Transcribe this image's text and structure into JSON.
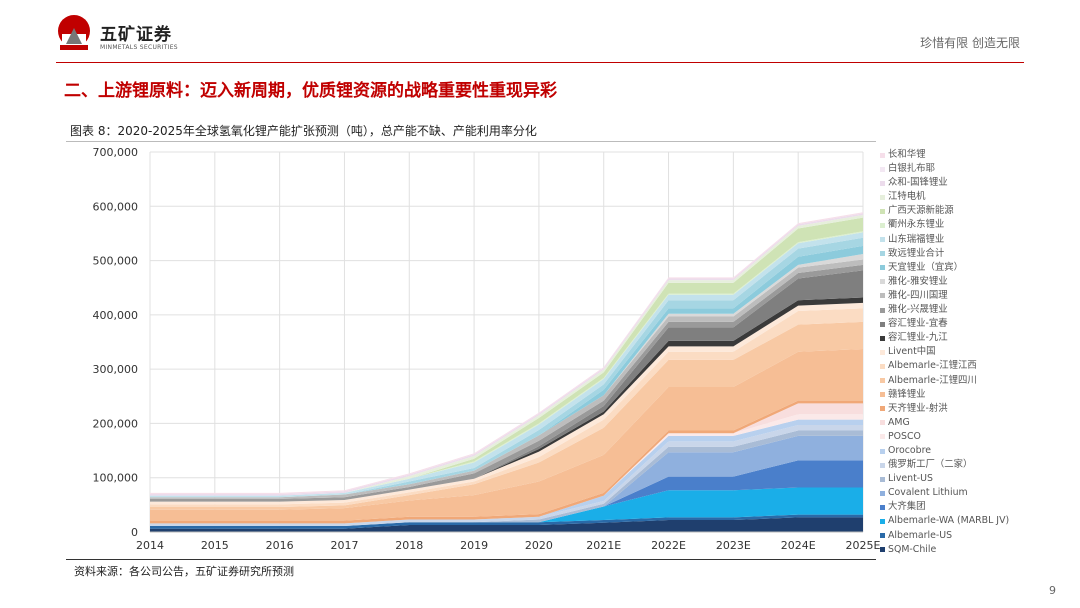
{
  "header": {
    "brand": "五矿证券",
    "brand_en": "MINMETALS SECURITIES",
    "slogan": "珍惜有限  创造无限"
  },
  "title": "二、上游锂原料：迈入新周期，优质锂资源的战略重要性重现异彩",
  "caption": "图表 8：2020-2025年全球氢氧化锂产能扩张预测（吨），总产能不缺、产能利用率分化",
  "source": "资料来源：各公司公告，五矿证券研究所预测",
  "page_number": "9",
  "chart_data": {
    "type": "area",
    "stacked": true,
    "title": "",
    "xlabel": "",
    "ylabel": "",
    "ylim": [
      0,
      700000
    ],
    "yticks": [
      "0",
      "100,000",
      "200,000",
      "300,000",
      "400,000",
      "500,000",
      "600,000",
      "700,000"
    ],
    "grid": true,
    "legend_placement": "right",
    "categories": [
      "2014",
      "2015",
      "2016",
      "2017",
      "2018",
      "2019",
      "2020",
      "2021E",
      "2022E",
      "2023E",
      "2024E",
      "2025E"
    ],
    "series": [
      {
        "name": "SQM-Chile",
        "color": "#1f3f6e",
        "values": [
          6000,
          6000,
          6000,
          6000,
          13000,
          13000,
          13000,
          17000,
          22000,
          22000,
          27000,
          27000
        ]
      },
      {
        "name": "Albemarle-US",
        "color": "#2a6aa8",
        "values": [
          5000,
          5000,
          5000,
          5000,
          5000,
          5000,
          5000,
          5000,
          5000,
          5000,
          5000,
          5000
        ]
      },
      {
        "name": "Albemarle-WA (MARBL JV)",
        "color": "#1aaee8",
        "values": [
          0,
          0,
          0,
          0,
          0,
          0,
          0,
          25000,
          50000,
          50000,
          50000,
          50000
        ]
      },
      {
        "name": "大齐集团",
        "color": "#4a7fcb",
        "values": [
          0,
          0,
          0,
          0,
          0,
          0,
          0,
          0,
          25000,
          25000,
          50000,
          50000
        ]
      },
      {
        "name": "Covalent Lithium",
        "color": "#8fb0de",
        "values": [
          0,
          0,
          0,
          0,
          0,
          0,
          0,
          0,
          45000,
          45000,
          45000,
          45000
        ]
      },
      {
        "name": "Livent-US",
        "color": "#a9bcd6",
        "values": [
          0,
          0,
          0,
          0,
          0,
          0,
          5000,
          5000,
          10000,
          10000,
          10000,
          10000
        ]
      },
      {
        "name": "俄罗斯工厂（二家）",
        "color": "#c9d6ea",
        "values": [
          5000,
          5000,
          5000,
          5000,
          5000,
          5000,
          5000,
          5000,
          10000,
          10000,
          10000,
          10000
        ]
      },
      {
        "name": "Orocobre",
        "color": "#b8d0ee",
        "values": [
          0,
          0,
          0,
          0,
          0,
          0,
          0,
          10000,
          10000,
          10000,
          10000,
          10000
        ]
      },
      {
        "name": "POSCO",
        "color": "#fbe9e9",
        "values": [
          0,
          0,
          0,
          0,
          0,
          0,
          0,
          0,
          5000,
          5000,
          10000,
          10000
        ]
      },
      {
        "name": "AMG",
        "color": "#f8dede",
        "values": [
          0,
          0,
          0,
          0,
          0,
          0,
          0,
          0,
          0,
          0,
          20000,
          20000
        ]
      },
      {
        "name": "天齐锂业-射洪",
        "color": "#f0a878",
        "values": [
          5000,
          5000,
          5000,
          5000,
          5000,
          5000,
          5000,
          5000,
          5000,
          5000,
          5000,
          5000
        ]
      },
      {
        "name": "赣锋锂业",
        "color": "#f6be95",
        "values": [
          20000,
          20000,
          20000,
          23000,
          30000,
          40000,
          60000,
          70000,
          80000,
          80000,
          90000,
          95000
        ]
      },
      {
        "name": "Albemarle-江锂四川",
        "color": "#f8c9a4",
        "values": [
          5000,
          5000,
          5000,
          5000,
          10000,
          20000,
          35000,
          50000,
          50000,
          50000,
          50000,
          50000
        ]
      },
      {
        "name": "Albemarle-江锂江西",
        "color": "#fbdcc3",
        "values": [
          5000,
          5000,
          5000,
          5000,
          5000,
          5000,
          10000,
          15000,
          15000,
          15000,
          25000,
          25000
        ]
      },
      {
        "name": "Livent中国",
        "color": "#fde9da",
        "values": [
          5000,
          5000,
          5000,
          5000,
          5000,
          5000,
          10000,
          10000,
          10000,
          10000,
          10000,
          10000
        ]
      },
      {
        "name": "容汇锂业-九江",
        "color": "#3a3a3a",
        "values": [
          0,
          0,
          0,
          0,
          0,
          0,
          5000,
          5000,
          10000,
          10000,
          10000,
          10000
        ]
      },
      {
        "name": "容汇锂业-宜春",
        "color": "#7f7f7f",
        "values": [
          0,
          0,
          0,
          0,
          0,
          0,
          5000,
          10000,
          25000,
          25000,
          40000,
          50000
        ]
      },
      {
        "name": "雅化-兴晟锂业",
        "color": "#9a9a9a",
        "values": [
          5000,
          5000,
          5000,
          5000,
          5000,
          10000,
          10000,
          10000,
          10000,
          10000,
          10000,
          10000
        ]
      },
      {
        "name": "雅化-四川国理",
        "color": "#bdbdbd",
        "values": [
          3000,
          3000,
          3000,
          5000,
          5000,
          5000,
          10000,
          10000,
          10000,
          10000,
          10000,
          10000
        ]
      },
      {
        "name": "雅化-雅安锂业",
        "color": "#d9d9d9",
        "values": [
          0,
          0,
          0,
          0,
          0,
          0,
          0,
          0,
          5000,
          5000,
          5000,
          10000
        ]
      },
      {
        "name": "天宜锂业（宜宾）",
        "color": "#8ccbdc",
        "values": [
          0,
          0,
          0,
          0,
          0,
          0,
          0,
          10000,
          10000,
          10000,
          15000,
          15000
        ]
      },
      {
        "name": "致远锂业合计",
        "color": "#a6d6e3",
        "values": [
          0,
          0,
          0,
          0,
          5000,
          5000,
          10000,
          10000,
          15000,
          15000,
          15000,
          15000
        ]
      },
      {
        "name": "山东瑞福锂业",
        "color": "#c3e2ec",
        "values": [
          3000,
          3000,
          3000,
          3000,
          5000,
          10000,
          10000,
          10000,
          10000,
          10000,
          10000,
          10000
        ]
      },
      {
        "name": "衢州永东锂业",
        "color": "#dcefd0",
        "values": [
          0,
          0,
          0,
          0,
          0,
          2000,
          2000,
          2000,
          2000,
          2000,
          2000,
          2000
        ]
      },
      {
        "name": "广西天源新能源",
        "color": "#cfe3b5",
        "values": [
          0,
          0,
          0,
          0,
          0,
          5000,
          10000,
          10000,
          20000,
          20000,
          25000,
          25000
        ]
      },
      {
        "name": "江特电机",
        "color": "#e6efdc",
        "values": [
          0,
          0,
          0,
          0,
          5000,
          5000,
          5000,
          5000,
          5000,
          5000,
          5000,
          5000
        ]
      },
      {
        "name": "众和-国锋锂业",
        "color": "#ecdcec",
        "values": [
          3000,
          3000,
          3000,
          3000,
          3000,
          3000,
          3000,
          3000,
          3000,
          3000,
          3000,
          3000
        ]
      },
      {
        "name": "白银扎布耶",
        "color": "#f3e8f3",
        "values": [
          0,
          0,
          0,
          0,
          0,
          0,
          0,
          0,
          0,
          0,
          0,
          0
        ]
      },
      {
        "name": "长和华锂",
        "color": "#f6dfea",
        "values": [
          2000,
          2000,
          2000,
          2000,
          2000,
          2000,
          2000,
          2000,
          2000,
          2000,
          2000,
          2000
        ]
      }
    ]
  }
}
